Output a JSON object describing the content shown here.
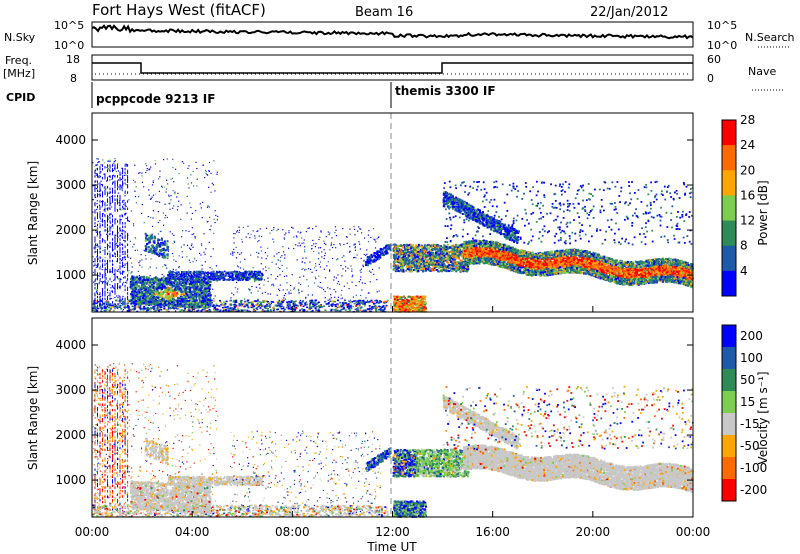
{
  "header": {
    "title": "Fort Hays West (fitACF)",
    "beam": "Beam 16",
    "date": "22/Jan/2012"
  },
  "nsky_panel": {
    "left_label": "N.Sky",
    "left_ticks": [
      "10^5",
      "10^0"
    ],
    "right_label": "N.Search",
    "right_ticks": [
      "10^5",
      "10^0"
    ]
  },
  "freq_panel": {
    "left_label_line1": "Freq.",
    "left_label_line2": "[MHz]",
    "left_ticks": [
      "18",
      "8"
    ],
    "right_label": "Nave",
    "right_ticks": [
      "60",
      "0"
    ]
  },
  "cpid_panel": {
    "label": "CPID",
    "segments": [
      {
        "name": "pcppcode 9213 IF",
        "start_hour": 0
      },
      {
        "name": "themis 3300 IF",
        "start_hour": 12
      }
    ]
  },
  "chart_data": [
    {
      "type": "heatmap",
      "name": "power",
      "ylabel": "Slant Range [km]",
      "yticks": [
        1000,
        2000,
        3000,
        4000
      ],
      "ylim": [
        180,
        4600
      ],
      "colorbar_label": "Power [dB]",
      "colorbar_ticks": [
        "4",
        "8",
        "12",
        "16",
        "20",
        "24",
        "28"
      ],
      "colors": [
        "#0000ff",
        "#1e5aaa",
        "#2e8b57",
        "#7ccd50",
        "#ffa500",
        "#ff6a00",
        "#ff0000"
      ]
    },
    {
      "type": "heatmap",
      "name": "velocity",
      "ylabel": "Slant Range [km]",
      "yticks": [
        1000,
        2000,
        3000,
        4000
      ],
      "ylim": [
        180,
        4600
      ],
      "colorbar_label": "Velocity [m s⁻¹]",
      "colorbar_ticks": [
        "200",
        "100",
        "50",
        "15",
        "-15",
        "-50",
        "-100",
        "-200"
      ],
      "colors": [
        "#0000ff",
        "#1e5aaa",
        "#2e8b57",
        "#7ccd50",
        "#c8c8c8",
        "#ffa500",
        "#ff6a00",
        "#ff0000"
      ]
    }
  ],
  "xaxis": {
    "ticks": [
      "00:00",
      "04:00",
      "08:00",
      "12:00",
      "16:00",
      "20:00",
      "00:00"
    ],
    "label": "Time UT",
    "xlim_hours": [
      0,
      24
    ]
  }
}
